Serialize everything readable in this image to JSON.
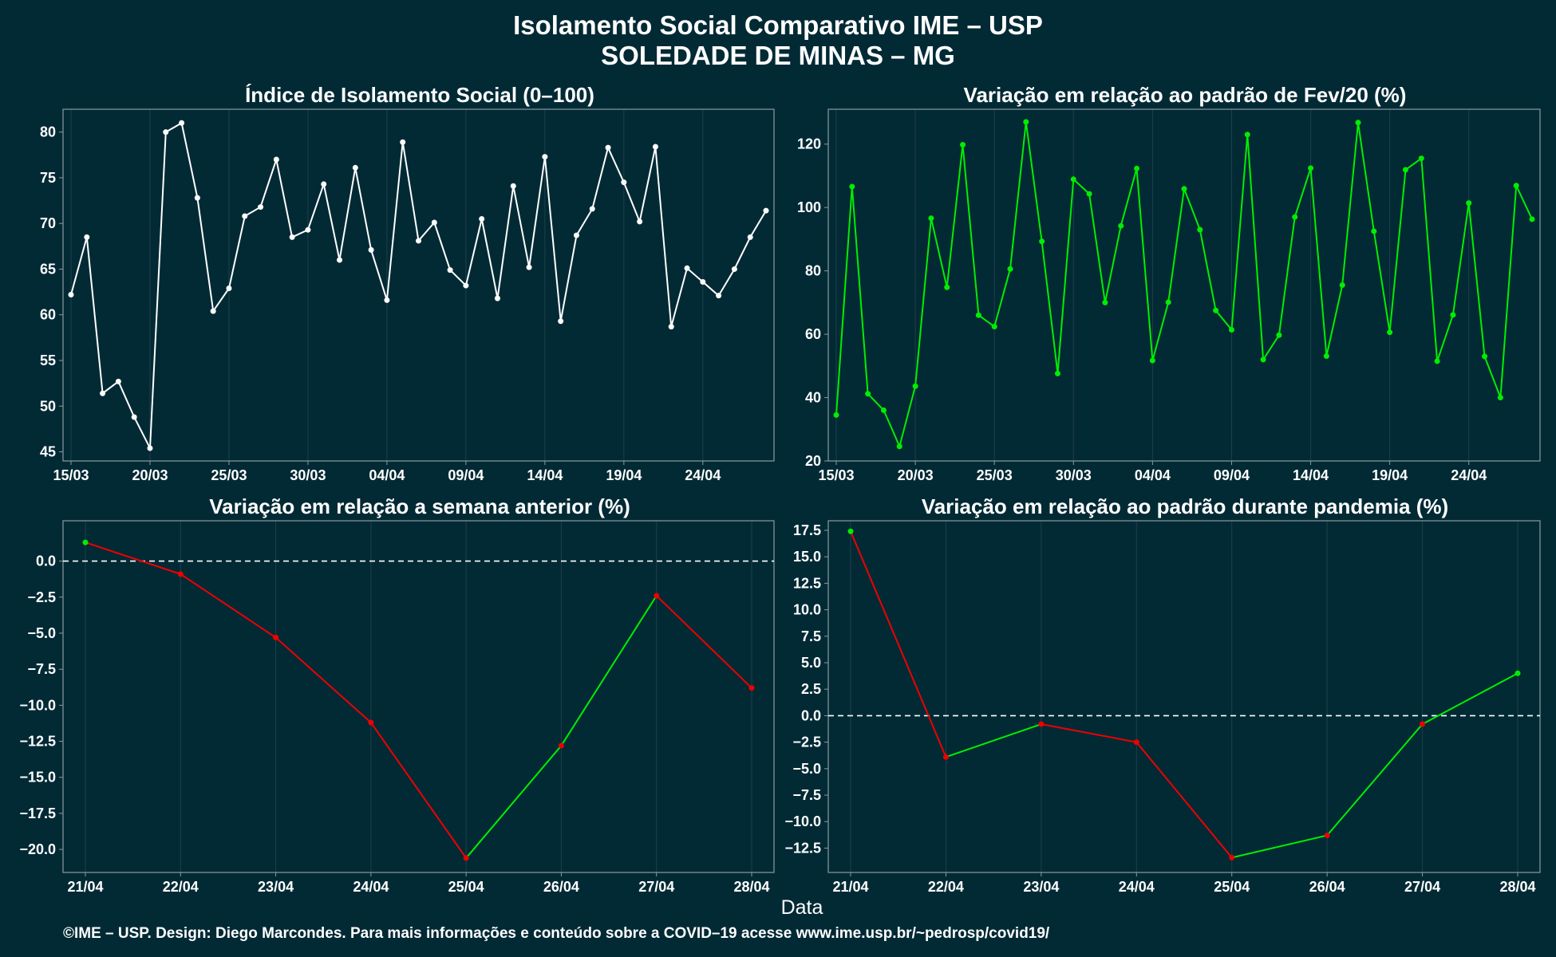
{
  "figure": {
    "title_line1": "Isolamento Social Comparativo IME – USP",
    "title_line2": "SOLEDADE DE MINAS – MG",
    "xlabel": "Data",
    "caption": "©IME – USP. Design: Diego Marcondes. Para mais informações e conteúdo sobre a COVID–19 acesse www.ime.usp.br/~pedrosp/covid19/",
    "colors": {
      "background": "#022a35",
      "panel_border": "#8a9aa0",
      "grid": "#1f3f4a",
      "white_series": "#ffffff",
      "green": "#00ee00",
      "red": "#ee0000",
      "zero_line": "#ffffff"
    }
  },
  "chart_data": [
    {
      "type": "line",
      "title": "Índice de Isolamento Social (0–100)",
      "color": "white",
      "x_dates_start": "15/03",
      "x_tick_labels": [
        "15/03",
        "20/03",
        "25/03",
        "30/03",
        "04/04",
        "09/04",
        "14/04",
        "19/04",
        "24/04"
      ],
      "x_tick_index": [
        0,
        5,
        10,
        15,
        20,
        25,
        30,
        35,
        40
      ],
      "ylim": [
        44,
        82.5
      ],
      "y_ticks": [
        45,
        50,
        55,
        60,
        65,
        70,
        75,
        80
      ],
      "values": [
        62.2,
        68.5,
        51.4,
        52.7,
        48.8,
        45.4,
        80.0,
        81.0,
        72.8,
        60.4,
        62.9,
        70.8,
        71.8,
        77.0,
        68.5,
        69.3,
        74.3,
        66.0,
        76.1,
        67.1,
        61.6,
        78.9,
        68.1,
        70.1,
        64.9,
        63.2,
        70.5,
        61.8,
        74.1,
        65.2,
        77.3,
        59.3,
        68.7,
        71.6,
        78.3,
        74.5,
        70.2,
        78.4,
        58.7,
        65.1,
        63.6,
        62.1,
        65.0,
        68.5,
        71.4
      ]
    },
    {
      "type": "line",
      "title": "Variação em relação ao padrão de Fev/20 (%)",
      "color": "green",
      "x_tick_labels": [
        "15/03",
        "20/03",
        "25/03",
        "30/03",
        "04/04",
        "09/04",
        "14/04",
        "19/04",
        "24/04"
      ],
      "x_tick_index": [
        0,
        5,
        10,
        15,
        20,
        25,
        30,
        35,
        40
      ],
      "ylim": [
        20,
        131
      ],
      "y_ticks": [
        20,
        40,
        60,
        80,
        100,
        120
      ],
      "values": [
        34.5,
        106.6,
        41.2,
        36.0,
        24.6,
        43.6,
        96.6,
        74.8,
        119.8,
        66.0,
        62.4,
        80.6,
        127.0,
        89.3,
        47.6,
        108.9,
        104.3,
        70.0,
        94.2,
        112.3,
        51.7,
        70.1,
        105.9,
        93.0,
        67.5,
        61.4,
        123.0,
        52.0,
        59.7,
        97.0,
        112.4,
        53.1,
        75.5,
        126.8,
        92.5,
        60.6,
        111.9,
        115.5,
        51.5,
        66.1,
        101.4,
        53.0,
        40.0,
        106.9,
        96.3
      ]
    },
    {
      "type": "line",
      "title": "Variação em relação a semana anterior (%)",
      "color": "sign",
      "categories": [
        "21/04",
        "22/04",
        "23/04",
        "24/04",
        "25/04",
        "26/04",
        "27/04",
        "28/04"
      ],
      "ylim": [
        -21.6,
        2.8
      ],
      "y_ticks": [
        0.0,
        -2.5,
        -5.0,
        -7.5,
        -10.0,
        -12.5,
        -15.0,
        -17.5,
        -20.0
      ],
      "y_tick_labels": [
        "0.0",
        "−2.5",
        "−5.0",
        "−7.5",
        "−10.0",
        "−12.5",
        "−15.0",
        "−17.5",
        "−20.0"
      ],
      "zero_line": true,
      "values": [
        1.3,
        -0.9,
        -5.3,
        -11.2,
        -20.6,
        -12.8,
        -2.4,
        -8.8
      ]
    },
    {
      "type": "line",
      "title": "Variação em relação ao padrão durante pandemia (%)",
      "color": "sign",
      "categories": [
        "21/04",
        "22/04",
        "23/04",
        "24/04",
        "25/04",
        "26/04",
        "27/04",
        "28/04"
      ],
      "ylim": [
        -14.8,
        18.4
      ],
      "y_ticks": [
        17.5,
        15.0,
        12.5,
        10.0,
        7.5,
        5.0,
        2.5,
        0.0,
        -2.5,
        -5.0,
        -7.5,
        -10.0,
        -12.5
      ],
      "y_tick_labels": [
        "17.5",
        "15.0",
        "12.5",
        "10.0",
        "7.5",
        "5.0",
        "2.5",
        "0.0",
        "−2.5",
        "−5.0",
        "−7.5",
        "−10.0",
        "−12.5"
      ],
      "zero_line": true,
      "values": [
        17.4,
        -3.9,
        -0.8,
        -2.5,
        -13.4,
        -11.3,
        -0.8,
        4.0
      ]
    }
  ]
}
